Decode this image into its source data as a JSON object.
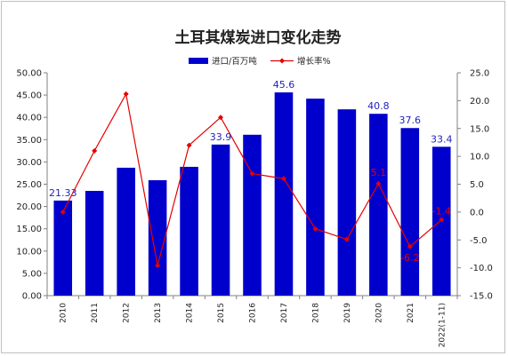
{
  "chart_data": {
    "type": "bar+line",
    "title": "土耳其煤炭进口变化走势",
    "categories": [
      "2010",
      "2011",
      "2012",
      "2013",
      "2014",
      "2015",
      "2016",
      "2017",
      "2018",
      "2019",
      "2020",
      "2021",
      "2022(1-11)"
    ],
    "series": [
      {
        "name": "进口/百万吨",
        "type": "bar",
        "axis": "left",
        "color": "#0000CC",
        "values": [
          21.33,
          23.5,
          28.7,
          25.9,
          28.9,
          33.9,
          36.1,
          45.6,
          44.2,
          41.8,
          40.8,
          37.6,
          33.4
        ]
      },
      {
        "name": "增长率%",
        "type": "line",
        "axis": "right",
        "color": "#E60000",
        "values": [
          0.0,
          11.0,
          21.2,
          -9.6,
          12.0,
          17.0,
          6.9,
          6.0,
          -3.0,
          -4.9,
          5.1,
          -6.2,
          -1.4
        ]
      }
    ],
    "bar_labels": [
      "21.33",
      "",
      "",
      "",
      "",
      "33.9",
      "",
      "45.6",
      "",
      "",
      "40.8",
      "37.6",
      "33.4"
    ],
    "line_labels": [
      "",
      "",
      "",
      "",
      "",
      "",
      "",
      "",
      "",
      "",
      "5.1",
      "-6.2",
      "-1.4"
    ],
    "y_left": {
      "min": 0,
      "max": 50,
      "step": 5,
      "ticks": [
        "0.00",
        "5.00",
        "10.00",
        "15.00",
        "20.00",
        "25.00",
        "30.00",
        "35.00",
        "40.00",
        "45.00",
        "50.00"
      ]
    },
    "y_right": {
      "min": -15,
      "max": 25,
      "step": 5,
      "ticks": [
        "-15.0",
        "-10.0",
        "-5.0",
        "0.0",
        "5.0",
        "10.0",
        "15.0",
        "20.0",
        "25.0"
      ]
    },
    "legend_position": "top-center",
    "grid": false
  }
}
